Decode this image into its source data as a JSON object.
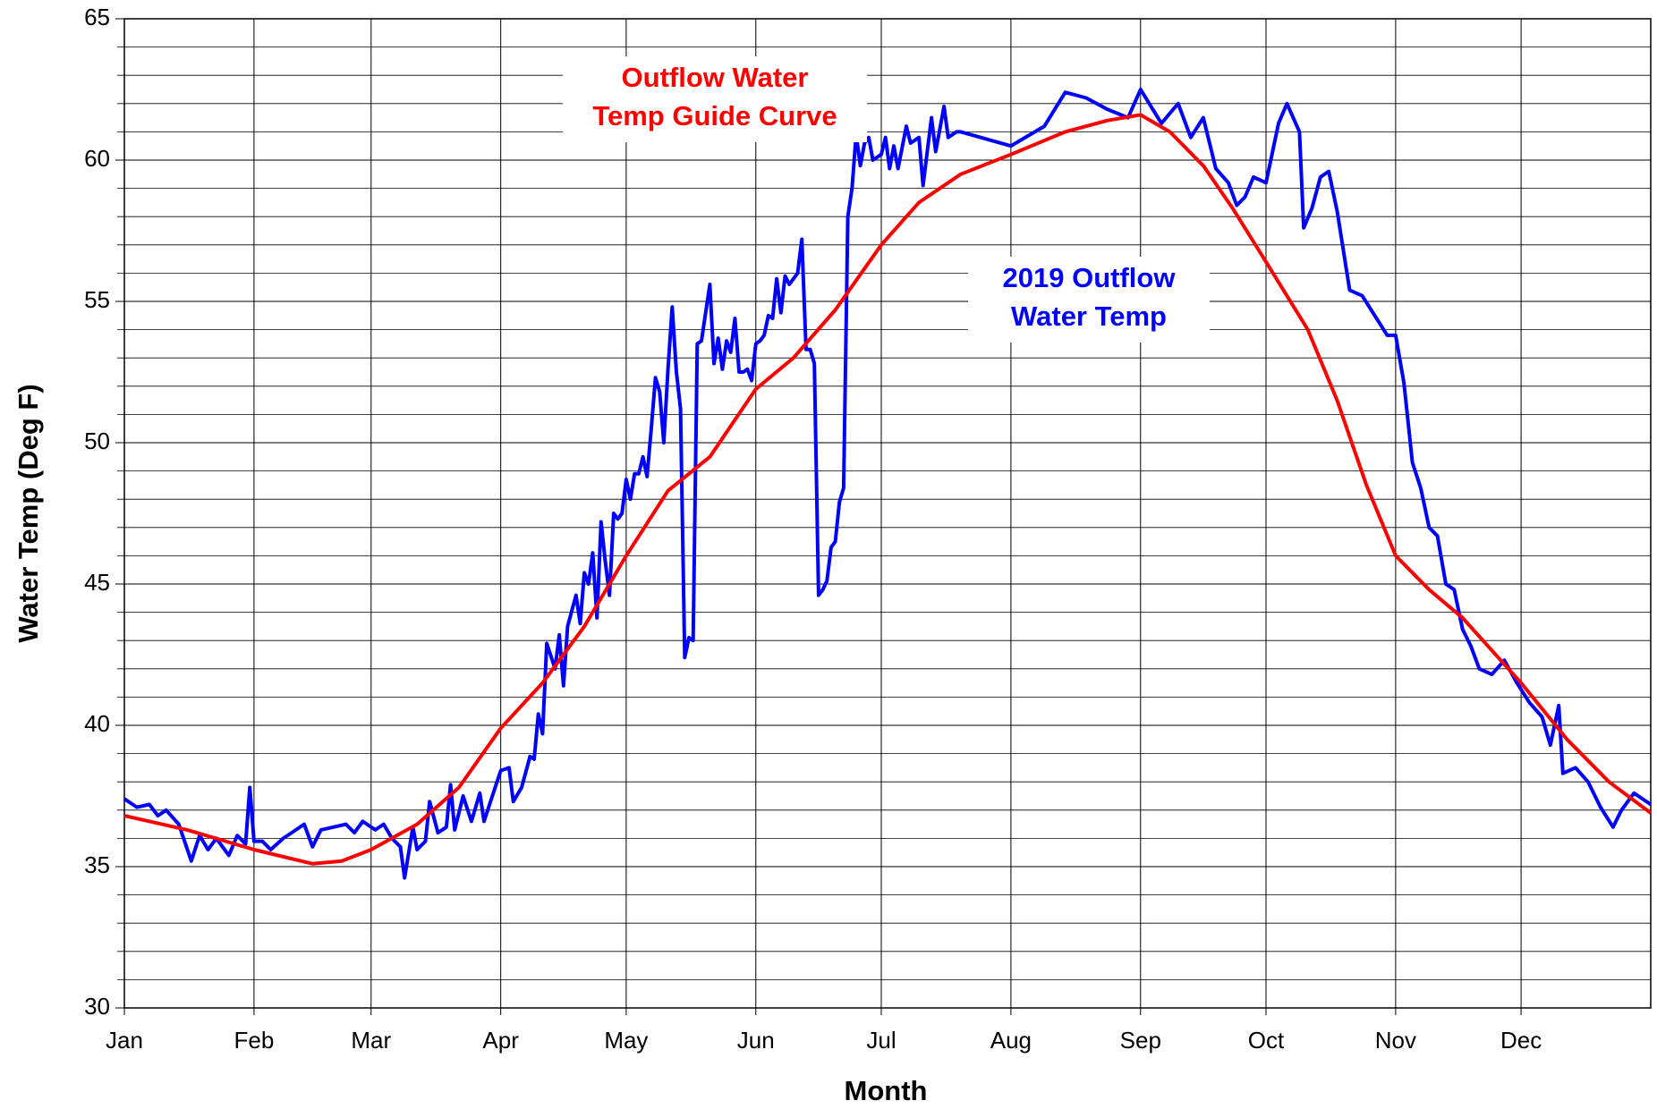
{
  "chart_data": {
    "type": "line",
    "xlabel": "Month",
    "ylabel": "Water Temp (Deg F)",
    "xlim": [
      0,
      365
    ],
    "xticks": [
      {
        "value": 0,
        "label": "Jan"
      },
      {
        "value": 31,
        "label": "Feb"
      },
      {
        "value": 59,
        "label": "Mar"
      },
      {
        "value": 90,
        "label": "Apr"
      },
      {
        "value": 120,
        "label": "May"
      },
      {
        "value": 151,
        "label": "Jun"
      },
      {
        "value": 181,
        "label": "Jul"
      },
      {
        "value": 212,
        "label": "Aug"
      },
      {
        "value": 243,
        "label": "Sep"
      },
      {
        "value": 273,
        "label": "Oct"
      },
      {
        "value": 304,
        "label": "Nov"
      },
      {
        "value": 334,
        "label": "Dec"
      }
    ],
    "ylim": [
      30,
      65
    ],
    "yticks": [
      30,
      35,
      40,
      45,
      50,
      55,
      60,
      65
    ],
    "y_minor_ticks": [
      31,
      32,
      33,
      34,
      36,
      37,
      38,
      39,
      41,
      42,
      43,
      44,
      46,
      47,
      48,
      49,
      51,
      52,
      53,
      54,
      56,
      57,
      58,
      59,
      61,
      62,
      63,
      64
    ],
    "grid": true,
    "series": [
      {
        "name": "2019 Outflow Water Temp",
        "color": "#0000ff",
        "x": [
          0,
          3,
          6,
          8,
          10,
          13,
          16,
          18,
          20,
          22,
          25,
          27,
          29,
          30,
          31,
          33,
          35,
          38,
          40,
          43,
          45,
          47,
          50,
          53,
          55,
          57,
          60,
          62,
          64,
          66,
          67,
          69,
          70,
          72,
          73,
          75,
          77,
          78,
          79,
          81,
          83,
          85,
          86,
          88,
          90,
          92,
          93,
          95,
          97,
          98,
          99,
          100,
          101,
          103,
          104,
          105,
          106,
          108,
          109,
          110,
          111,
          112,
          113,
          114,
          115,
          116,
          117,
          118,
          119,
          120,
          121,
          122,
          123,
          124,
          125,
          126,
          127,
          128,
          129,
          130,
          131,
          132,
          133,
          134,
          135,
          136,
          137,
          138,
          140,
          141,
          142,
          143,
          144,
          145,
          146,
          147,
          148,
          149,
          150,
          151,
          152,
          153,
          154,
          155,
          156,
          157,
          158,
          159,
          160,
          161,
          162,
          163,
          164,
          165,
          166,
          167,
          168,
          169,
          170,
          171,
          172,
          173,
          174,
          175,
          176,
          177,
          178,
          179,
          181,
          182,
          183,
          184,
          185,
          187,
          188,
          190,
          191,
          193,
          194,
          196,
          197,
          199,
          200,
          212,
          220,
          225,
          230,
          235,
          240,
          243,
          248,
          252,
          255,
          258,
          261,
          264,
          266,
          268,
          270,
          273,
          276,
          278,
          281,
          282,
          284,
          286,
          288,
          290,
          293,
          296,
          299,
          302,
          304,
          306,
          308,
          310,
          312,
          314,
          316,
          318,
          320,
          322,
          324,
          327,
          330,
          333,
          336,
          339,
          341,
          343,
          344,
          347,
          350,
          353,
          356,
          358,
          361,
          365
        ],
        "values": [
          37.4,
          37.1,
          37.2,
          36.8,
          37.0,
          36.5,
          35.2,
          36.1,
          35.6,
          36.0,
          35.4,
          36.1,
          35.8,
          37.8,
          35.9,
          35.9,
          35.6,
          36.0,
          36.2,
          36.5,
          35.7,
          36.3,
          36.4,
          36.5,
          36.2,
          36.6,
          36.3,
          36.5,
          36.0,
          35.7,
          34.6,
          36.4,
          35.6,
          35.9,
          37.3,
          36.2,
          36.4,
          37.9,
          36.3,
          37.5,
          36.6,
          37.6,
          36.6,
          37.5,
          38.4,
          38.5,
          37.3,
          37.8,
          38.9,
          38.8,
          40.4,
          39.7,
          42.9,
          42.0,
          43.2,
          41.4,
          43.5,
          44.6,
          43.6,
          45.4,
          45.0,
          46.1,
          43.8,
          47.2,
          45.8,
          44.6,
          47.5,
          47.3,
          47.5,
          48.7,
          48.0,
          48.9,
          48.9,
          49.5,
          48.8,
          50.5,
          52.3,
          51.8,
          50.0,
          52.6,
          54.8,
          52.5,
          51.2,
          42.4,
          43.1,
          43.0,
          53.5,
          53.6,
          55.6,
          52.8,
          53.7,
          52.6,
          53.6,
          53.2,
          54.4,
          52.5,
          52.5,
          52.6,
          52.2,
          53.5,
          53.6,
          53.8,
          54.5,
          54.4,
          55.8,
          54.6,
          55.9,
          55.6,
          55.8,
          56.0,
          57.2,
          53.3,
          53.3,
          52.8,
          44.6,
          44.8,
          45.1,
          46.3,
          46.5,
          47.9,
          48.4,
          58.0,
          59.0,
          60.9,
          59.8,
          60.6,
          60.8,
          60.0,
          60.2,
          60.8,
          59.7,
          60.5,
          59.7,
          61.2,
          60.6,
          60.8,
          59.1,
          61.5,
          60.3,
          61.9,
          60.8,
          61.0,
          61.0,
          60.5,
          61.2,
          62.4,
          62.2,
          61.8,
          61.5,
          62.5,
          61.3,
          62.0,
          60.8,
          61.5,
          59.7,
          59.2,
          58.4,
          58.7,
          59.4,
          59.2,
          61.3,
          62.0,
          61.0,
          57.6,
          58.3,
          59.4,
          59.6,
          58.2,
          55.4,
          55.2,
          54.5,
          53.8,
          53.8,
          52.1,
          49.3,
          48.4,
          47.0,
          46.7,
          45.0,
          44.8,
          43.4,
          42.8,
          42.0,
          41.8,
          42.3,
          41.5,
          40.8,
          40.3,
          39.3,
          40.7,
          38.3,
          38.5,
          38.0,
          37.1,
          36.4,
          37.0,
          37.6,
          37.2
        ]
      },
      {
        "name": "Outflow Water Temp Guide Curve",
        "color": "#ff0000",
        "x": [
          0,
          15,
          31,
          45,
          52,
          59,
          70,
          80,
          90,
          100,
          110,
          120,
          130,
          140,
          151,
          160,
          170,
          181,
          190,
          200,
          212,
          225,
          235,
          243,
          250,
          258,
          265,
          273,
          283,
          290,
          297,
          304,
          312,
          320,
          334,
          345,
          355,
          365
        ],
        "values": [
          36.8,
          36.3,
          35.6,
          35.1,
          35.2,
          35.6,
          36.5,
          37.8,
          39.9,
          41.5,
          43.5,
          46.0,
          48.3,
          49.5,
          51.9,
          53.0,
          54.7,
          57.0,
          58.5,
          59.5,
          60.2,
          61.0,
          61.4,
          61.6,
          61.0,
          59.8,
          58.3,
          56.4,
          54.0,
          51.5,
          48.5,
          46.0,
          44.8,
          43.8,
          41.5,
          39.5,
          38.0,
          36.9
        ]
      }
    ],
    "annotations": [
      {
        "lines": [
          "Outflow Water",
          "Temp Guide Curve"
        ],
        "color": "#ff0000"
      },
      {
        "lines": [
          "2019 Outflow",
          "Water Temp"
        ],
        "color": "#0000ff"
      }
    ]
  }
}
